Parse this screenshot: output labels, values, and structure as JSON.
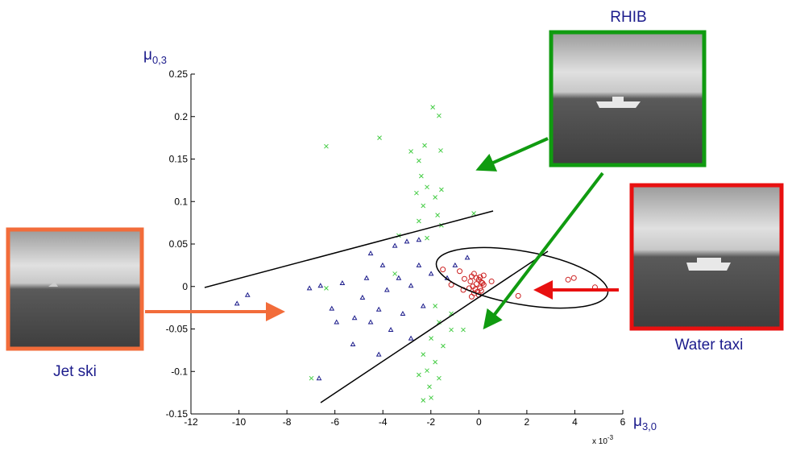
{
  "chart_data": {
    "type": "scatter",
    "x_label": {
      "symbol": "μ",
      "subscript": "3,0"
    },
    "y_label": {
      "symbol": "μ",
      "subscript": "0,3"
    },
    "x_multiplier": {
      "base": "x 10",
      "exponent": "-3"
    },
    "annotations": {
      "rhib": "RHIB",
      "jet_ski": "Jet ski",
      "water_taxi": "Water taxi"
    },
    "xlim": [
      -12,
      6
    ],
    "xticks": [
      -12,
      -10,
      -8,
      -6,
      -4,
      -2,
      0,
      2,
      4,
      6
    ],
    "ylim": [
      -0.15,
      0.25
    ],
    "yticks": [
      -0.15,
      -0.1,
      -0.05,
      0,
      0.05,
      0.1,
      0.15,
      0.2,
      0.25
    ],
    "series": [
      {
        "name": "Jet ski",
        "color": "#1a1a8a",
        "marker": "triangle",
        "x": [
          -10.08,
          -9.64,
          -7.06,
          -6.6,
          -5.69,
          -6.13,
          -6.66,
          -5.25,
          -4.51,
          -4.01,
          -3.5,
          -3.0,
          -2.5,
          -4.85,
          -4.17,
          -3.83,
          -3.34,
          -2.83,
          -2.5,
          -1.99,
          -3.17,
          -3.67,
          -4.51,
          -4.17,
          -5.18,
          -2.83,
          -2.32,
          -1.32,
          -0.99,
          -0.48,
          -4.68,
          -5.93
        ],
        "y": [
          -0.02,
          -0.01,
          -0.002,
          0.001,
          0.004,
          -0.026,
          -0.108,
          -0.068,
          0.039,
          0.025,
          0.048,
          0.053,
          0.055,
          -0.013,
          -0.027,
          -0.004,
          0.01,
          0.001,
          0.025,
          0.015,
          -0.032,
          -0.051,
          -0.042,
          -0.08,
          -0.037,
          -0.061,
          -0.023,
          0.01,
          0.025,
          0.034,
          0.01,
          -0.042
        ]
      },
      {
        "name": "RHIB",
        "color": "#44cc44",
        "marker": "x",
        "x": [
          -1.92,
          -1.66,
          -6.36,
          -4.14,
          -2.83,
          -2.26,
          -1.59,
          -2.5,
          -2.4,
          -2.16,
          -1.56,
          -2.6,
          -1.82,
          -2.32,
          -1.72,
          -2.5,
          -1.56,
          -3.34,
          -2.16,
          -0.21,
          -3.5,
          -1.82,
          -1.66,
          -1.15,
          -1.99,
          -1.49,
          -2.32,
          -1.82,
          -2.16,
          -2.5,
          -1.66,
          -2.06,
          -2.32,
          -1.99,
          -6.98,
          -6.36,
          -0.65,
          -1.15
        ],
        "y": [
          0.211,
          0.201,
          0.165,
          0.175,
          0.159,
          0.166,
          0.16,
          0.148,
          0.13,
          0.117,
          0.114,
          0.11,
          0.105,
          0.095,
          0.084,
          0.077,
          0.072,
          0.06,
          0.057,
          0.086,
          0.015,
          -0.023,
          -0.042,
          -0.051,
          -0.061,
          -0.07,
          -0.08,
          -0.089,
          -0.099,
          -0.104,
          -0.108,
          -0.118,
          -0.134,
          -0.131,
          -0.108,
          -0.002,
          -0.051,
          -0.032
        ]
      },
      {
        "name": "Water taxi",
        "color": "#cc2020",
        "marker": "circle",
        "x": [
          3.72,
          3.96,
          4.84,
          1.64,
          0.53,
          -1.15,
          -0.65,
          -0.3,
          -0.2,
          -0.1,
          0.0,
          0.1,
          0.2,
          -0.25,
          -0.15,
          -0.05,
          0.05,
          0.15,
          -0.35,
          -0.2,
          0.0,
          0.1,
          -0.4,
          -0.1,
          0.05,
          -0.6,
          -0.8,
          -1.5,
          -0.3,
          0.2
        ],
        "y": [
          0.008,
          0.01,
          -0.001,
          -0.011,
          0.006,
          0.002,
          -0.004,
          0.012,
          0.015,
          0.01,
          0.008,
          0.005,
          0.002,
          0.0,
          -0.003,
          -0.006,
          -0.002,
          0.004,
          0.006,
          -0.008,
          -0.01,
          -0.005,
          -0.002,
          0.003,
          0.011,
          0.009,
          0.018,
          0.02,
          -0.012,
          0.013
        ]
      }
    ]
  }
}
